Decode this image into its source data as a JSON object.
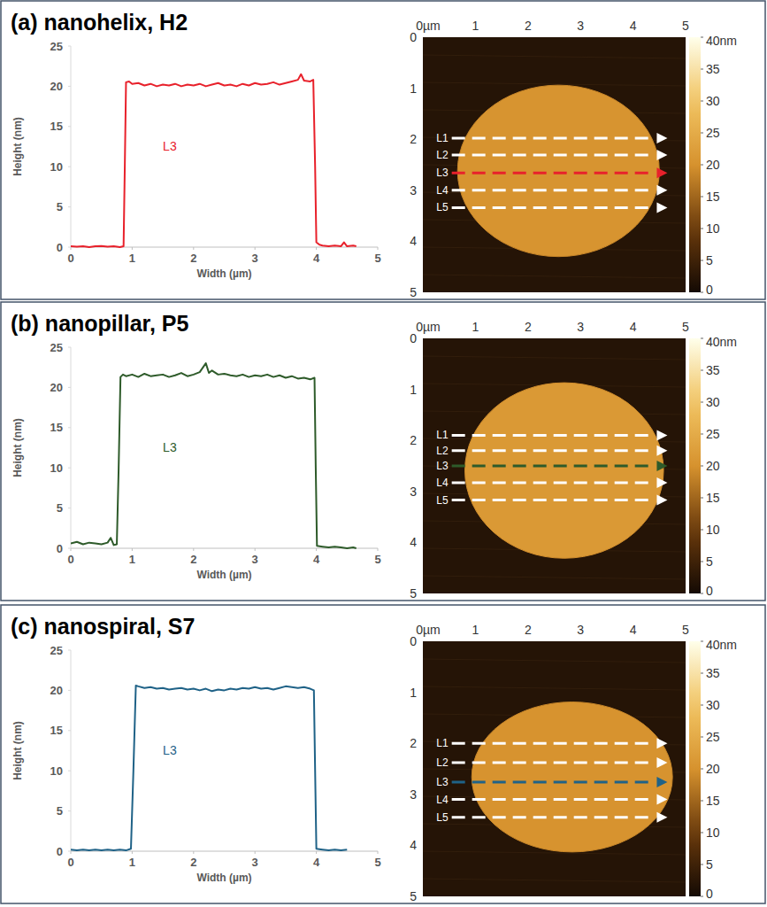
{
  "chart_data": [
    {
      "type": "line",
      "title": "(a) nanohelix, H2",
      "x_label": "Width (µm)",
      "y_label": "Height (nm)",
      "xlim": [
        0,
        5
      ],
      "xticks": [
        0,
        1,
        2,
        3,
        4,
        5
      ],
      "ylim": [
        0,
        25
      ],
      "yticks": [
        0,
        5,
        10,
        15,
        20,
        25
      ],
      "x": [
        0,
        0.1,
        0.2,
        0.3,
        0.4,
        0.5,
        0.6,
        0.7,
        0.8,
        0.86,
        0.88,
        0.9,
        0.95,
        1.0,
        1.1,
        1.2,
        1.3,
        1.4,
        1.5,
        1.6,
        1.7,
        1.8,
        1.9,
        2.0,
        2.1,
        2.2,
        2.3,
        2.4,
        2.5,
        2.6,
        2.7,
        2.8,
        2.9,
        3.0,
        3.1,
        3.2,
        3.3,
        3.4,
        3.5,
        3.6,
        3.7,
        3.75,
        3.8,
        3.9,
        3.95,
        3.98,
        4.0,
        4.05,
        4.1,
        4.2,
        4.3,
        4.4,
        4.45,
        4.5,
        4.6,
        4.65
      ],
      "series": [
        {
          "name": "L3",
          "color": "#e8212b",
          "values": [
            0.1,
            0.05,
            0.1,
            0,
            0.1,
            0.15,
            0.05,
            0.1,
            0,
            0.1,
            10,
            20.5,
            20.6,
            20.3,
            20.4,
            20.1,
            20.3,
            20.0,
            20.2,
            20.1,
            20.3,
            20.0,
            20.2,
            20.1,
            20.3,
            20.0,
            20.2,
            20.4,
            20.1,
            20.2,
            20.0,
            20.3,
            20.1,
            20.4,
            20.2,
            20.3,
            20.5,
            20.2,
            20.4,
            20.6,
            20.8,
            21.5,
            20.7,
            20.6,
            20.8,
            10,
            0.6,
            0.3,
            0.2,
            0.1,
            0.2,
            0.1,
            0.6,
            0.1,
            0.2,
            0.1
          ]
        }
      ]
    },
    {
      "type": "afm_map",
      "xlim": [
        0,
        5
      ],
      "xticks": [
        {
          "value": 0,
          "label": "0µm"
        },
        1,
        2,
        3,
        4,
        5
      ],
      "ylim": [
        0,
        5
      ],
      "yticks": [
        0,
        1,
        2,
        3,
        4,
        5
      ],
      "color_range": [
        0,
        40
      ],
      "color_ticks": [
        0,
        5,
        10,
        15,
        20,
        25,
        30,
        35,
        {
          "value": 40,
          "label": "40nm"
        }
      ],
      "substrate_height": 2,
      "disk": {
        "cx": 2.58,
        "cy": 2.62,
        "rx": 1.92,
        "ry": 1.68,
        "height": 20.3
      },
      "scan_x": [
        0.55,
        4.3
      ],
      "scan_lines": [
        {
          "name": "L1",
          "y": 1.98,
          "color": "#ffffff"
        },
        {
          "name": "L2",
          "y": 2.31,
          "color": "#ffffff"
        },
        {
          "name": "L3",
          "y": 2.66,
          "color": "#e8212b"
        },
        {
          "name": "L4",
          "y": 3.0,
          "color": "#ffffff"
        },
        {
          "name": "L5",
          "y": 3.34,
          "color": "#ffffff"
        }
      ]
    },
    {
      "type": "line",
      "title": "(b) nanopillar, P5",
      "x_label": "Width (µm)",
      "y_label": "Height (nm)",
      "xlim": [
        0,
        5
      ],
      "xticks": [
        0,
        1,
        2,
        3,
        4,
        5
      ],
      "ylim": [
        0,
        25
      ],
      "yticks": [
        0,
        5,
        10,
        15,
        20,
        25
      ],
      "x": [
        0,
        0.1,
        0.2,
        0.3,
        0.4,
        0.5,
        0.6,
        0.65,
        0.7,
        0.75,
        0.78,
        0.81,
        0.85,
        0.9,
        1.0,
        1.1,
        1.2,
        1.3,
        1.4,
        1.5,
        1.6,
        1.7,
        1.8,
        1.9,
        2.0,
        2.1,
        2.2,
        2.25,
        2.3,
        2.4,
        2.5,
        2.6,
        2.7,
        2.8,
        2.9,
        3.0,
        3.1,
        3.2,
        3.3,
        3.4,
        3.5,
        3.6,
        3.7,
        3.8,
        3.9,
        3.97,
        3.99,
        4.01,
        4.1,
        4.2,
        4.3,
        4.4,
        4.5,
        4.6,
        4.65
      ],
      "series": [
        {
          "name": "L3",
          "color": "#2e5b2a",
          "values": [
            0.6,
            0.8,
            0.5,
            0.7,
            0.6,
            0.5,
            0.7,
            1.3,
            0.4,
            0.5,
            10,
            21.3,
            21.6,
            21.4,
            21.6,
            21.3,
            21.7,
            21.4,
            21.5,
            21.6,
            21.3,
            21.5,
            21.8,
            21.4,
            21.6,
            21.9,
            23.0,
            21.8,
            22.1,
            21.6,
            21.7,
            21.5,
            21.4,
            21.6,
            21.3,
            21.5,
            21.4,
            21.6,
            21.3,
            21.5,
            21.2,
            21.4,
            21.1,
            21.2,
            21.0,
            21.2,
            10,
            0.3,
            0.2,
            0.1,
            0.2,
            0.1,
            0,
            0.1,
            0
          ]
        }
      ]
    },
    {
      "type": "afm_map",
      "xlim": [
        0,
        5
      ],
      "xticks": [
        {
          "value": 0,
          "label": "0µm"
        },
        1,
        2,
        3,
        4,
        5
      ],
      "ylim": [
        0,
        5
      ],
      "yticks": [
        0,
        1,
        2,
        3,
        4,
        5
      ],
      "color_range": [
        0,
        40
      ],
      "color_ticks": [
        0,
        5,
        10,
        15,
        20,
        25,
        30,
        35,
        {
          "value": 40,
          "label": "40nm"
        }
      ],
      "substrate_height": 2,
      "disk": {
        "cx": 2.69,
        "cy": 2.59,
        "rx": 1.89,
        "ry": 1.72,
        "height": 21.3
      },
      "scan_x": [
        0.55,
        4.3
      ],
      "scan_lines": [
        {
          "name": "L1",
          "y": 1.9,
          "color": "#ffffff"
        },
        {
          "name": "L2",
          "y": 2.2,
          "color": "#ffffff"
        },
        {
          "name": "L3",
          "y": 2.5,
          "color": "#2e5b2a"
        },
        {
          "name": "L4",
          "y": 2.83,
          "color": "#ffffff"
        },
        {
          "name": "L5",
          "y": 3.17,
          "color": "#ffffff"
        }
      ]
    },
    {
      "type": "line",
      "title": "(c) nanospiral, S7",
      "x_label": "Width (µm)",
      "y_label": "Height (nm)",
      "xlim": [
        0,
        5
      ],
      "xticks": [
        0,
        1,
        2,
        3,
        4,
        5
      ],
      "ylim": [
        0,
        25
      ],
      "yticks": [
        0,
        5,
        10,
        15,
        20,
        25
      ],
      "x": [
        0,
        0.1,
        0.2,
        0.3,
        0.4,
        0.5,
        0.6,
        0.7,
        0.8,
        0.9,
        0.98,
        1.02,
        1.06,
        1.1,
        1.2,
        1.3,
        1.4,
        1.5,
        1.6,
        1.7,
        1.8,
        1.9,
        2.0,
        2.1,
        2.2,
        2.3,
        2.4,
        2.5,
        2.6,
        2.7,
        2.8,
        2.9,
        3.0,
        3.1,
        3.2,
        3.3,
        3.4,
        3.5,
        3.6,
        3.7,
        3.8,
        3.9,
        3.96,
        3.98,
        4.0,
        4.1,
        4.2,
        4.3,
        4.4,
        4.5
      ],
      "series": [
        {
          "name": "L3",
          "color": "#1f6287",
          "values": [
            0.2,
            0.1,
            0.2,
            0.1,
            0.2,
            0.1,
            0.2,
            0.1,
            0.2,
            0.1,
            0.3,
            10,
            20.6,
            20.5,
            20.3,
            20.4,
            20.2,
            20.3,
            20.1,
            20.2,
            20.3,
            20.1,
            20.2,
            20.0,
            20.2,
            19.9,
            20.1,
            20.0,
            20.2,
            20.1,
            20.3,
            20.2,
            20.4,
            20.2,
            20.3,
            20.1,
            20.3,
            20.5,
            20.4,
            20.3,
            20.4,
            20.2,
            20.0,
            10,
            0.3,
            0.2,
            0.1,
            0.2,
            0.1,
            0.2
          ]
        }
      ]
    },
    {
      "type": "afm_map",
      "xlim": [
        0,
        5
      ],
      "xticks": [
        {
          "value": 0,
          "label": "0µm"
        },
        1,
        2,
        3,
        4,
        5
      ],
      "ylim": [
        0,
        5
      ],
      "yticks": [
        0,
        1,
        2,
        3,
        4,
        5
      ],
      "color_range": [
        0,
        40
      ],
      "color_ticks": [
        0,
        5,
        10,
        15,
        20,
        25,
        30,
        35,
        {
          "value": 40,
          "label": "40nm"
        }
      ],
      "substrate_height": 2,
      "disk": {
        "cx": 2.84,
        "cy": 2.66,
        "rx": 1.91,
        "ry": 1.47,
        "height": 20.2
      },
      "scan_x": [
        0.55,
        4.3
      ],
      "scan_lines": [
        {
          "name": "L1",
          "y": 2.0,
          "color": "#ffffff"
        },
        {
          "name": "L2",
          "y": 2.38,
          "color": "#ffffff"
        },
        {
          "name": "L3",
          "y": 2.76,
          "color": "#1f6287"
        },
        {
          "name": "L4",
          "y": 3.1,
          "color": "#ffffff"
        },
        {
          "name": "L5",
          "y": 3.45,
          "color": "#ffffff"
        }
      ]
    }
  ]
}
